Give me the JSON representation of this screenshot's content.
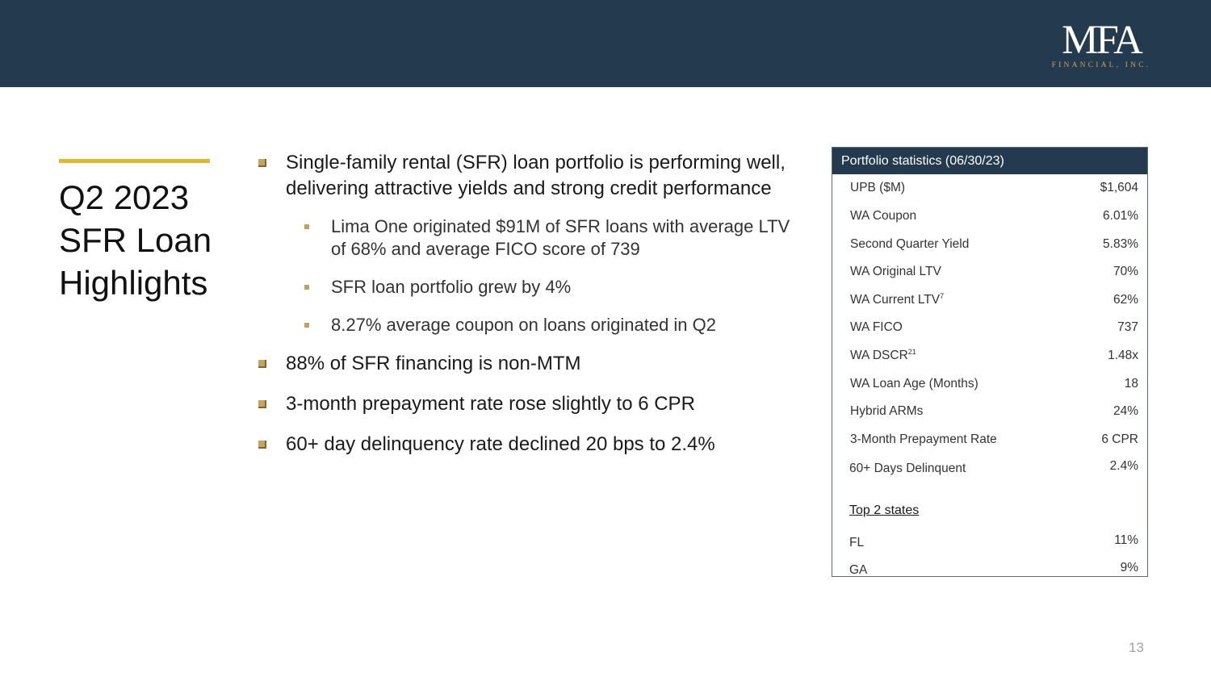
{
  "logo": {
    "mark": "MFA",
    "sub": "FINANCIAL, INC."
  },
  "title": {
    "line1": "Q2 2023",
    "line2": "SFR Loan",
    "line3": "Highlights"
  },
  "bullets": {
    "b1": "Single-family rental (SFR) loan portfolio is performing well, delivering attractive yields and strong credit performance",
    "b1_sub1": "Lima One originated $91M of SFR loans with average LTV of 68% and average FICO score of 739",
    "b1_sub2": "SFR loan portfolio grew by 4%",
    "b1_sub3": "8.27% average coupon on loans originated in Q2",
    "b2": "88% of SFR financing is non-MTM",
    "b3": "3-month prepayment rate rose slightly to 6 CPR",
    "b4": "60+ day delinquency rate declined 20 bps to 2.4%"
  },
  "stats": {
    "header": "Portfolio statistics (06/30/23)",
    "rows": [
      {
        "label": "UPB ($M)",
        "value": "$1,604"
      },
      {
        "label": "WA Coupon",
        "value": "6.01%"
      },
      {
        "label": "Second Quarter Yield",
        "value": "5.83%"
      },
      {
        "label": "WA Original LTV",
        "value": "70%"
      },
      {
        "label": "WA Current LTV",
        "sup": "7",
        "value": "62%"
      },
      {
        "label": "WA FICO",
        "value": "737"
      },
      {
        "label": "WA DSCR",
        "sup": "21",
        "value": "1.48x"
      },
      {
        "label": "WA Loan Age (Months)",
        "value": "18"
      },
      {
        "label": "Hybrid ARMs",
        "value": "24%"
      },
      {
        "label": "3-Month Prepayment Rate",
        "value": "6 CPR"
      },
      {
        "label": "60+ Days Delinquent",
        "value": "2.4%"
      }
    ],
    "top_states_label": "Top 2 states",
    "states": [
      {
        "label": "FL",
        "value": "11%"
      },
      {
        "label": "GA",
        "value": "9%"
      }
    ]
  },
  "page_number": "13"
}
